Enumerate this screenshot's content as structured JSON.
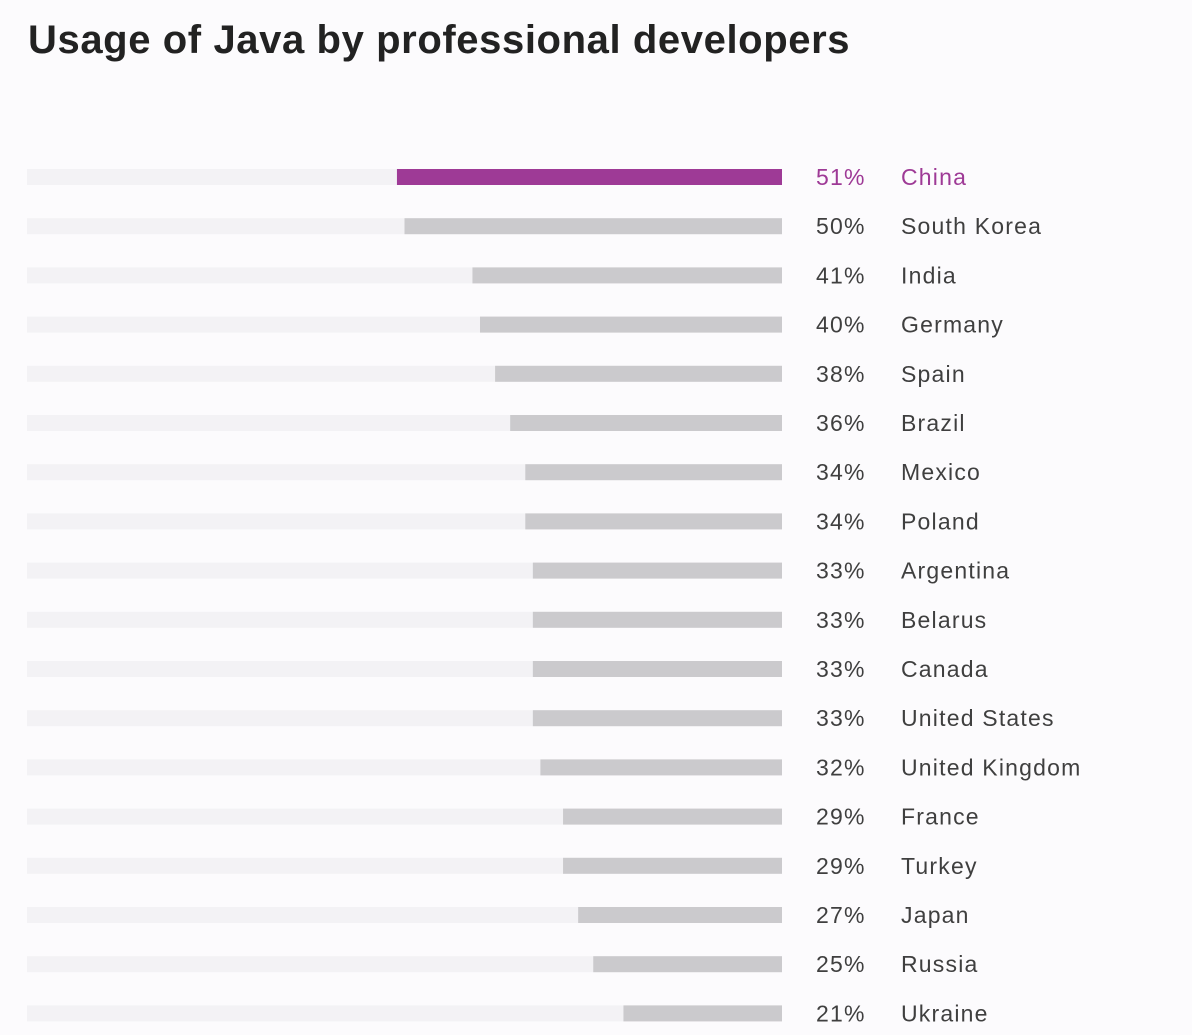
{
  "chart_data": {
    "type": "bar",
    "orientation": "horizontal",
    "title": "Usage of Java by professional developers",
    "xlabel": "",
    "ylabel": "",
    "xlim": [
      0,
      100
    ],
    "value_suffix": "%",
    "highlight_category": "China",
    "colors": {
      "track": "#f3f2f5",
      "bar": "#cbcacd",
      "highlight": "#9e3a96",
      "text": "#3f3f3f"
    },
    "categories": [
      "China",
      "South Korea",
      "India",
      "Germany",
      "Spain",
      "Brazil",
      "Mexico",
      "Poland",
      "Argentina",
      "Belarus",
      "Canada",
      "United States",
      "United Kingdom",
      "France",
      "Turkey",
      "Japan",
      "Russia",
      "Ukraine"
    ],
    "values": [
      51,
      50,
      41,
      40,
      38,
      36,
      34,
      34,
      33,
      33,
      33,
      33,
      32,
      29,
      29,
      27,
      25,
      21
    ],
    "value_labels": [
      "51%",
      "50%",
      "41%",
      "40%",
      "38%",
      "36%",
      "34%",
      "34%",
      "33%",
      "33%",
      "33%",
      "33%",
      "32%",
      "29%",
      "29%",
      "27%",
      "25%",
      "21%"
    ]
  }
}
